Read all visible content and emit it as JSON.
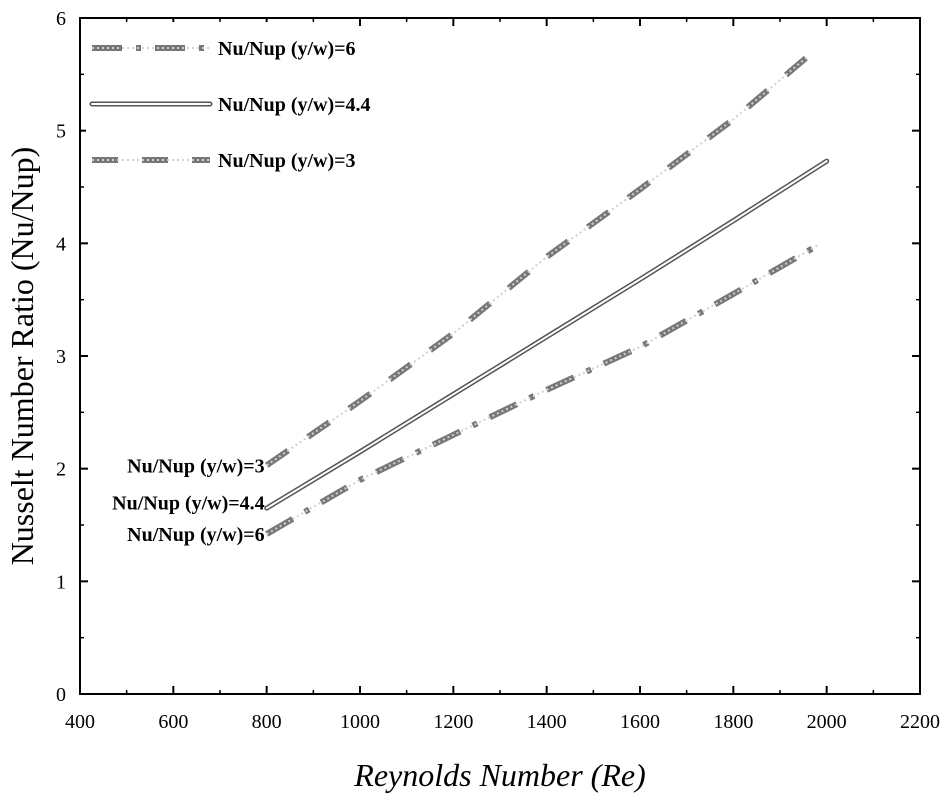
{
  "chart_data": {
    "type": "line",
    "title": "",
    "xlabel": "Reynolds Number (Re)",
    "ylabel": "Nusselt Number Ratio (Nu/Nup)",
    "xlim": [
      400,
      2200
    ],
    "ylim": [
      0,
      6
    ],
    "xticks": [
      400,
      600,
      800,
      1000,
      1200,
      1400,
      1600,
      1800,
      2000,
      2200
    ],
    "yticks": [
      0,
      1,
      2,
      3,
      4,
      5,
      6
    ],
    "grid": false,
    "legend_position": "top-left",
    "series": [
      {
        "name": "Nu/Nup (y/w)=6",
        "line_style": "dash-dot",
        "color": "#777777",
        "x": [
          800,
          1000,
          1200,
          1400,
          1600,
          1800,
          1980
        ],
        "y": [
          1.42,
          1.9,
          2.3,
          2.7,
          3.08,
          3.55,
          3.98
        ]
      },
      {
        "name": "Nu/Nup (y/w)=4.4",
        "line_style": "double-solid",
        "color": "#555555",
        "x": [
          800,
          1000,
          1200,
          1400,
          1600,
          1800,
          2000
        ],
        "y": [
          1.65,
          2.15,
          2.66,
          3.17,
          3.68,
          4.2,
          4.73
        ]
      },
      {
        "name": "Nu/Nup (y/w)=3",
        "line_style": "dashed",
        "color": "#777777",
        "x": [
          800,
          1000,
          1200,
          1400,
          1600,
          1800,
          1960
        ],
        "y": [
          2.03,
          2.6,
          3.2,
          3.88,
          4.48,
          5.1,
          5.66
        ]
      }
    ],
    "annotations": [
      {
        "text": "Nu/Nup (y/w)=3",
        "x": 800,
        "y": 2.03
      },
      {
        "text": "Nu/Nup (y/w)=4.4",
        "x": 800,
        "y": 1.7
      },
      {
        "text": "Nu/Nup (y/w)=6",
        "x": 800,
        "y": 1.42
      }
    ]
  }
}
